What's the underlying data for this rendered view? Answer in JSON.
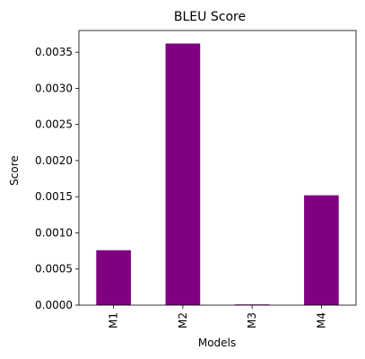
{
  "chart_data": {
    "type": "bar",
    "title": "BLEU Score",
    "xlabel": "Models",
    "ylabel": "Score",
    "categories": [
      "M1",
      "M2",
      "M3",
      "M4"
    ],
    "values": [
      0.00076,
      0.00362,
      1e-05,
      0.00152
    ],
    "ylim": [
      0,
      0.0038
    ],
    "yticks": [
      0.0,
      0.0005,
      0.001,
      0.0015,
      0.002,
      0.0025,
      0.003,
      0.0035
    ],
    "ytick_labels": [
      "0.0000",
      "0.0005",
      "0.0010",
      "0.0015",
      "0.0020",
      "0.0025",
      "0.0030",
      "0.0035"
    ],
    "bar_color": "#800080",
    "grid": false,
    "legend": "none"
  }
}
